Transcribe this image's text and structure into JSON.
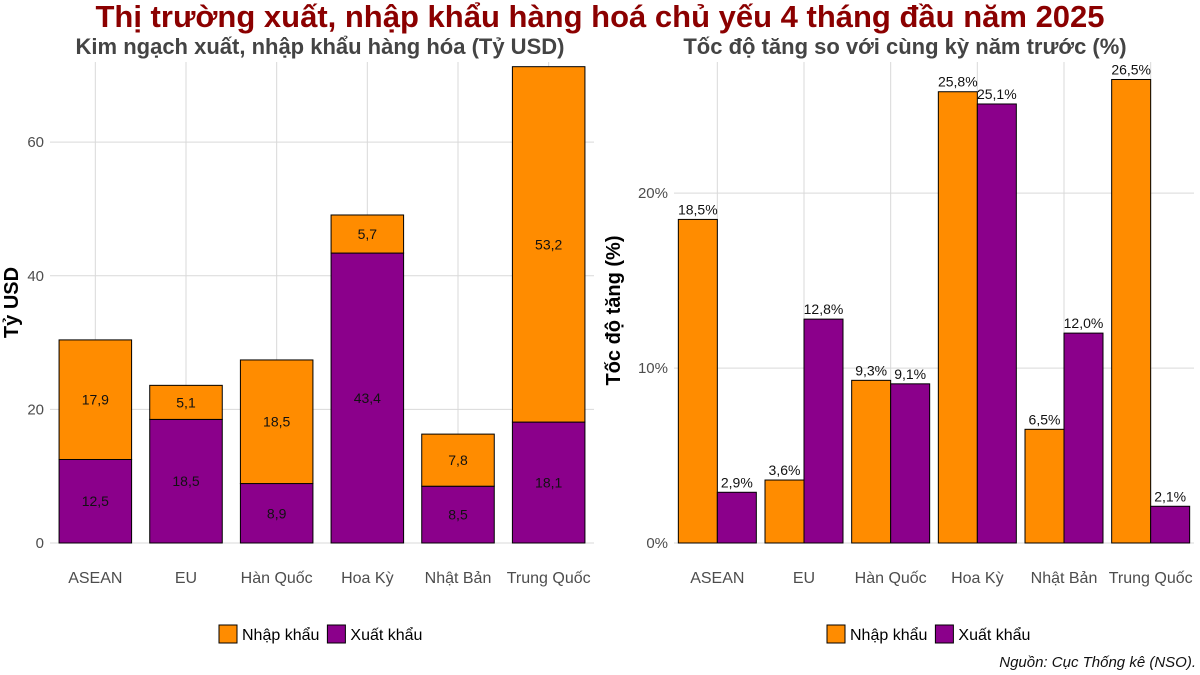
{
  "title": "Thị trường xuất, nhập khẩu hàng hoá chủ yếu 4 tháng đầu năm 2025",
  "source": "Nguồn: Cục Thống kê (NSO).",
  "colors": {
    "title": "#8b0000",
    "subtitle": "#444444",
    "nhap_khau": "#ff8c00",
    "xuat_khau": "#8b008b",
    "grid": "#d9d9d9",
    "axis_text": "#4d4d4d"
  },
  "chart_data": [
    {
      "type": "bar",
      "stacked": true,
      "title": "Kim ngạch xuất, nhập khẩu hàng hóa (Tỷ USD)",
      "xlabel": "",
      "ylabel": "Tỷ USD",
      "ylim": [
        0,
        72
      ],
      "yticks": [
        0,
        20,
        40,
        60
      ],
      "ytick_labels": [
        "0",
        "20",
        "40",
        "60"
      ],
      "grid": true,
      "legend_position": "bottom",
      "categories": [
        "ASEAN",
        "EU",
        "Hàn Quốc",
        "Hoa Kỳ",
        "Nhật Bản",
        "Trung Quốc"
      ],
      "series": [
        {
          "name": "Xuất khẩu",
          "values": [
            12.5,
            18.5,
            8.9,
            43.4,
            8.5,
            18.1
          ],
          "labels": [
            "12,5",
            "18,5",
            "8,9",
            "43,4",
            "8,5",
            "18,1"
          ]
        },
        {
          "name": "Nhập khẩu",
          "values": [
            17.9,
            5.1,
            18.5,
            5.7,
            7.8,
            53.2
          ],
          "labels": [
            "17,9",
            "5,1",
            "18,5",
            "5,7",
            "7,8",
            "53,2"
          ]
        }
      ],
      "legend": [
        "Nhập khẩu",
        "Xuất khẩu"
      ]
    },
    {
      "type": "bar",
      "grouped": true,
      "title": "Tốc độ tăng so với cùng kỳ năm trước (%)",
      "xlabel": "",
      "ylabel": "Tốc độ tăng (%)",
      "ylim": [
        0,
        27.5
      ],
      "yticks": [
        0,
        10,
        20
      ],
      "ytick_labels": [
        "0%",
        "10%",
        "20%"
      ],
      "grid": true,
      "legend_position": "bottom",
      "categories": [
        "ASEAN",
        "EU",
        "Hàn Quốc",
        "Hoa Kỳ",
        "Nhật Bản",
        "Trung Quốc"
      ],
      "series": [
        {
          "name": "Nhập khẩu",
          "values": [
            18.5,
            3.6,
            9.3,
            25.8,
            6.5,
            26.5
          ],
          "labels": [
            "18,5%",
            "3,6%",
            "9,3%",
            "25,8%",
            "6,5%",
            "26,5%"
          ]
        },
        {
          "name": "Xuất khẩu",
          "values": [
            2.9,
            12.8,
            9.1,
            25.1,
            12.0,
            2.1
          ],
          "labels": [
            "2,9%",
            "12,8%",
            "9,1%",
            "25,1%",
            "12,0%",
            "2,1%"
          ]
        }
      ],
      "legend": [
        "Nhập khẩu",
        "Xuất khẩu"
      ]
    }
  ]
}
